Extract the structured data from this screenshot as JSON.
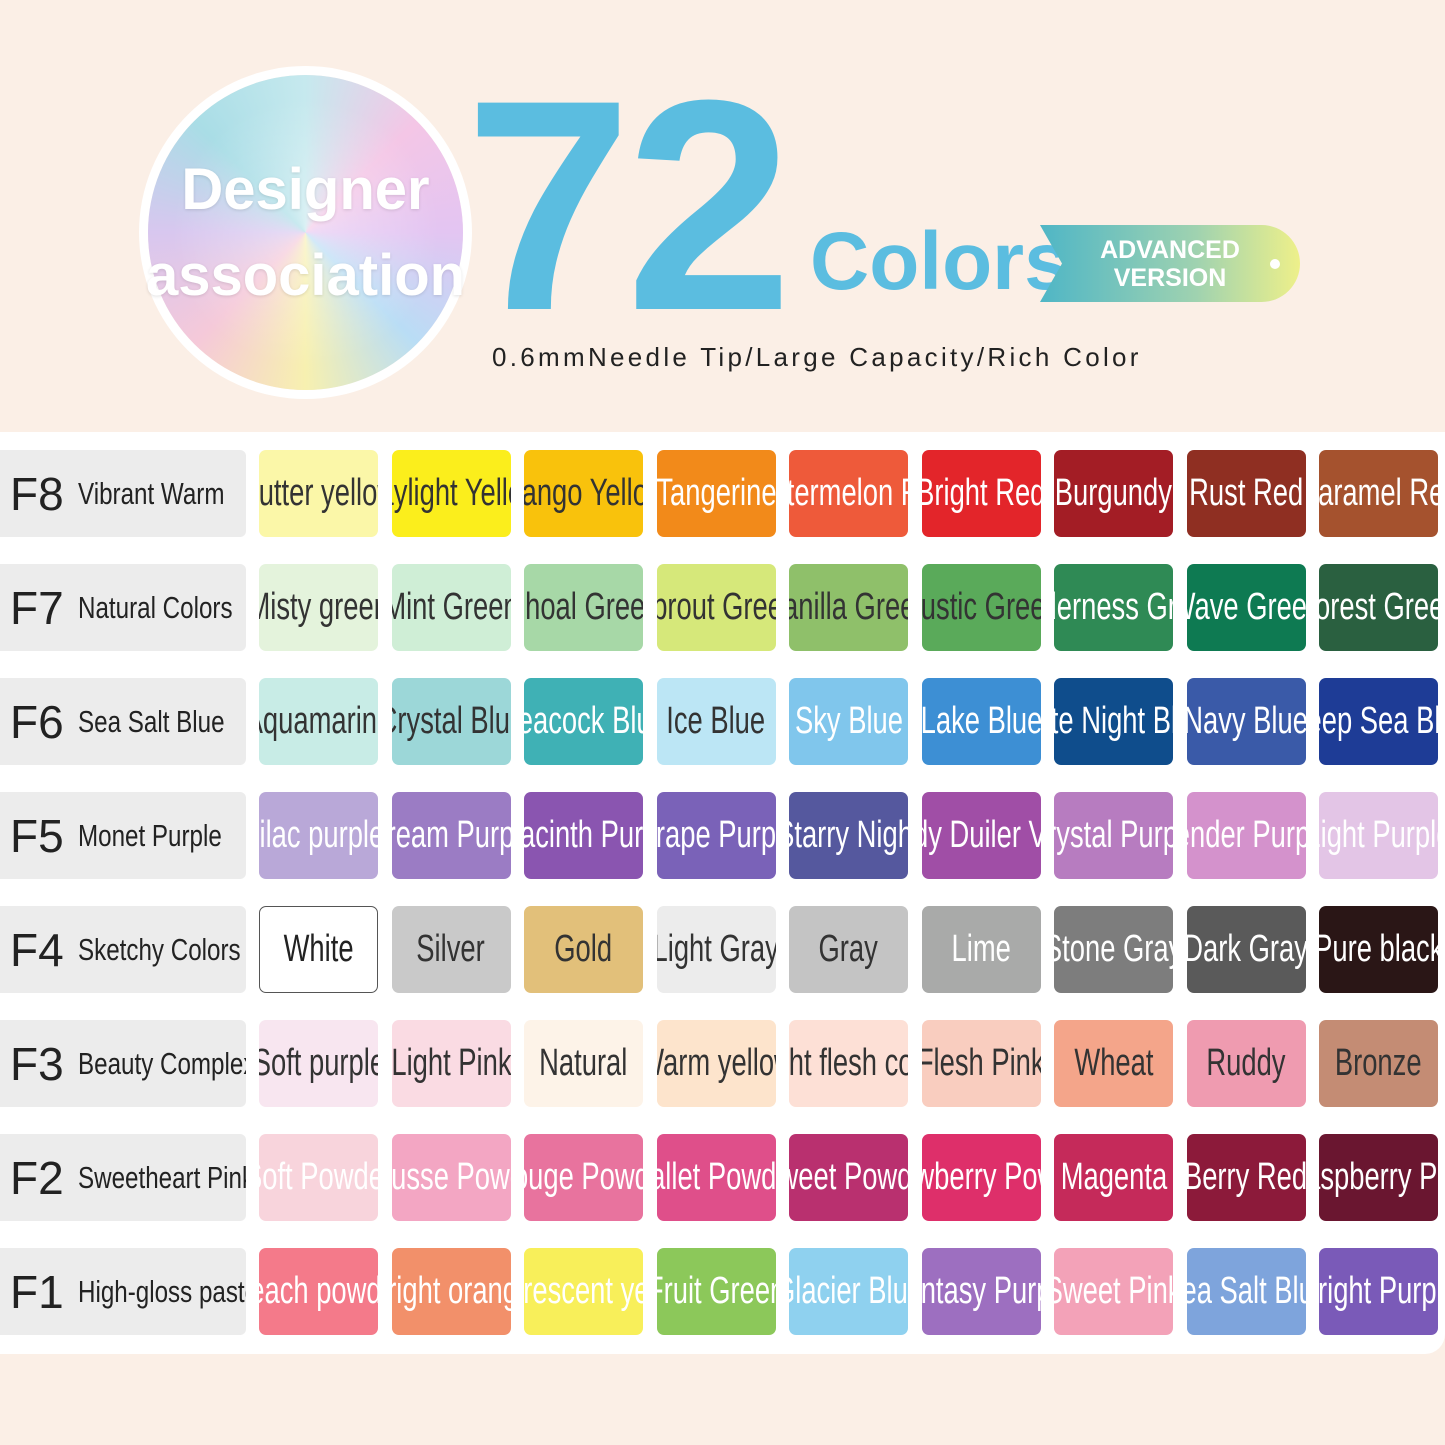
{
  "header": {
    "badge_line1": "Designer",
    "badge_line2": "association",
    "count": "72",
    "count_label": "Colors",
    "ribbon_line1": "ADVANCED",
    "ribbon_line2": "VERSION",
    "subtitle": "0.6mmNeedle Tip/Large Capacity/Rich Color",
    "accent": "#5bbde0"
  },
  "rows": [
    {
      "code": "F8",
      "name": "Vibrant Warm",
      "cells": [
        {
          "label": "Butter yellow",
          "bg": "#fbf7a8",
          "fg": "#333"
        },
        {
          "label": "Daylight Yellow",
          "bg": "#fbee1c",
          "fg": "#333"
        },
        {
          "label": "Mango Yellow",
          "bg": "#f9c20c",
          "fg": "#333"
        },
        {
          "label": "Tangerine",
          "bg": "#f28a1a",
          "fg": "#fff"
        },
        {
          "label": "Watermelon Red",
          "bg": "#ee5a3a",
          "fg": "#fff"
        },
        {
          "label": "Bright Red",
          "bg": "#e3252a",
          "fg": "#fff"
        },
        {
          "label": "Burgundy",
          "bg": "#a31d25",
          "fg": "#fff"
        },
        {
          "label": "Rust Red",
          "bg": "#8f2f22",
          "fg": "#fff"
        },
        {
          "label": "Caramel Red",
          "bg": "#a5522e",
          "fg": "#fff"
        }
      ]
    },
    {
      "code": "F7",
      "name": "Natural Colors",
      "cells": [
        {
          "label": "Misty green",
          "bg": "#e4f3dc",
          "fg": "#333"
        },
        {
          "label": "Mint Green",
          "bg": "#cfeed6",
          "fg": "#333"
        },
        {
          "label": "Shoal Green",
          "bg": "#a7d8a7",
          "fg": "#333"
        },
        {
          "label": "Sprout Green",
          "bg": "#d6e87a",
          "fg": "#333"
        },
        {
          "label": "Vanilla Green",
          "bg": "#8fc06a",
          "fg": "#333"
        },
        {
          "label": "Rustic Green",
          "bg": "#5aaa5a",
          "fg": "#333"
        },
        {
          "label": "Wilderness Green",
          "bg": "#2f8a55",
          "fg": "#fff"
        },
        {
          "label": "Wave Green",
          "bg": "#0e7a52",
          "fg": "#fff"
        },
        {
          "label": "Forest Green",
          "bg": "#2a6040",
          "fg": "#fff"
        }
      ]
    },
    {
      "code": "F6",
      "name": "Sea Salt Blue",
      "cells": [
        {
          "label": "Aquamarine",
          "bg": "#c8ece6",
          "fg": "#333"
        },
        {
          "label": "Crystal Blue",
          "bg": "#9cd7d8",
          "fg": "#333"
        },
        {
          "label": "Peacock Blue",
          "bg": "#3fb1b5",
          "fg": "#fff"
        },
        {
          "label": "Ice Blue",
          "bg": "#bce6f5",
          "fg": "#333"
        },
        {
          "label": "Sky Blue",
          "bg": "#80c6ec",
          "fg": "#fff"
        },
        {
          "label": "Lake Blue",
          "bg": "#3d8fd4",
          "fg": "#fff"
        },
        {
          "label": "Late Night Blue",
          "bg": "#0f4d8c",
          "fg": "#fff"
        },
        {
          "label": "Navy Blue",
          "bg": "#3a5aa8",
          "fg": "#fff"
        },
        {
          "label": "Deep Sea Blue",
          "bg": "#1e3c96",
          "fg": "#fff"
        }
      ]
    },
    {
      "code": "F5",
      "name": "Monet Purple",
      "cells": [
        {
          "label": "lilac purple",
          "bg": "#b9a8d8",
          "fg": "#fff"
        },
        {
          "label": "Dream Purple",
          "bg": "#9b7cc4",
          "fg": "#fff"
        },
        {
          "label": "Hyacinth Purple",
          "bg": "#8a55b0",
          "fg": "#fff"
        },
        {
          "label": "Grape Purple",
          "bg": "#7a62b8",
          "fg": "#fff"
        },
        {
          "label": "Starry Night",
          "bg": "#55589e",
          "fg": "#fff"
        },
        {
          "label": "Sigtdy Duiler Violet",
          "bg": "#a04ea6",
          "fg": "#fff"
        },
        {
          "label": "Crystal Purple",
          "bg": "#b77cc0",
          "fg": "#fff"
        },
        {
          "label": "Tender Purple",
          "bg": "#d492cc",
          "fg": "#fff"
        },
        {
          "label": "Light Purple",
          "bg": "#e3c5e6",
          "fg": "#fff"
        }
      ]
    },
    {
      "code": "F4",
      "name": "Sketchy Colors",
      "cells": [
        {
          "label": "White",
          "bg": "#ffffff",
          "fg": "#222"
        },
        {
          "label": "Silver",
          "bg": "#c9c9c9",
          "fg": "#333"
        },
        {
          "label": "Gold",
          "bg": "#e2c07a",
          "fg": "#333"
        },
        {
          "label": "Light Gray",
          "bg": "#ececec",
          "fg": "#333"
        },
        {
          "label": "Gray",
          "bg": "#c4c4c4",
          "fg": "#333"
        },
        {
          "label": "Lime",
          "bg": "#a9aaa9",
          "fg": "#fff"
        },
        {
          "label": "Stone Gray",
          "bg": "#7d7d7d",
          "fg": "#fff"
        },
        {
          "label": "Dark Gray",
          "bg": "#5a5a5a",
          "fg": "#fff"
        },
        {
          "label": "Pure black",
          "bg": "#2a1616",
          "fg": "#fff"
        }
      ]
    },
    {
      "code": "F3",
      "name": "Beauty Complexion",
      "cells": [
        {
          "label": "Soft purple",
          "bg": "#f8e6f0",
          "fg": "#333"
        },
        {
          "label": "Light Pink",
          "bg": "#fadbe3",
          "fg": "#333"
        },
        {
          "label": "Natural",
          "bg": "#fdf3e8",
          "fg": "#333"
        },
        {
          "label": "Warm yellow",
          "bg": "#fde4cc",
          "fg": "#333"
        },
        {
          "label": "Light flesh color",
          "bg": "#fde0d6",
          "fg": "#333"
        },
        {
          "label": "Flesh Pink",
          "bg": "#f9cdbf",
          "fg": "#333"
        },
        {
          "label": "Wheat",
          "bg": "#f4a58a",
          "fg": "#333"
        },
        {
          "label": "Ruddy",
          "bg": "#ef9bb0",
          "fg": "#333"
        },
        {
          "label": "Bronze",
          "bg": "#c48c74",
          "fg": "#333"
        }
      ]
    },
    {
      "code": "F2",
      "name": "Sweetheart Pink",
      "cells": [
        {
          "label": "Soft Powder",
          "bg": "#f8d4dc",
          "fg": "#fff"
        },
        {
          "label": "Mousse Powder",
          "bg": "#f3a6c3",
          "fg": "#fff"
        },
        {
          "label": "Rouge Powder",
          "bg": "#e8739e",
          "fg": "#fff"
        },
        {
          "label": "Ballet Powder",
          "bg": "#df4f8a",
          "fg": "#fff"
        },
        {
          "label": "Sweet Powder",
          "bg": "#b9306f",
          "fg": "#fff"
        },
        {
          "label": "Strawberry Powder",
          "bg": "#de2f6a",
          "fg": "#fff"
        },
        {
          "label": "Magenta",
          "bg": "#c52a5a",
          "fg": "#fff"
        },
        {
          "label": "Berry Red",
          "bg": "#8c1a3a",
          "fg": "#fff"
        },
        {
          "label": "Raspberry Pink",
          "bg": "#6a1630",
          "fg": "#fff"
        }
      ]
    },
    {
      "code": "F1",
      "name": "High-gloss pastels",
      "cells": [
        {
          "label": "Peach powder",
          "bg": "#f47a8a",
          "fg": "#fff"
        },
        {
          "label": "Bright orange",
          "bg": "#f2906a",
          "fg": "#fff"
        },
        {
          "label": "Fluorescent yellow",
          "bg": "#f8ef5a",
          "fg": "#fff"
        },
        {
          "label": "Fruit Green",
          "bg": "#8cc85a",
          "fg": "#fff"
        },
        {
          "label": "Glacier Blue",
          "bg": "#8fd1ef",
          "fg": "#fff"
        },
        {
          "label": "Fantasy Purple",
          "bg": "#9d6fc0",
          "fg": "#fff"
        },
        {
          "label": "Sweet Pink",
          "bg": "#f3a2b8",
          "fg": "#fff"
        },
        {
          "label": "Sea Salt Blue",
          "bg": "#7ea4dc",
          "fg": "#fff"
        },
        {
          "label": "Bright Purple",
          "bg": "#7a5ab8",
          "fg": "#fff"
        }
      ]
    }
  ]
}
